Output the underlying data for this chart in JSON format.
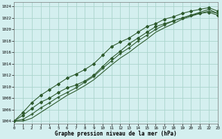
{
  "title": "Graphe pression niveau de la mer (hPa)",
  "background_color": "#d4efef",
  "grid_color": "#aad4cc",
  "line_color": "#2d5a2d",
  "xlim": [
    0,
    23
  ],
  "ylim": [
    1003.5,
    1024.8
  ],
  "xticks": [
    0,
    1,
    2,
    3,
    4,
    5,
    6,
    7,
    8,
    9,
    10,
    11,
    12,
    13,
    14,
    15,
    16,
    17,
    18,
    19,
    20,
    21,
    22,
    23
  ],
  "yticks": [
    1004,
    1006,
    1008,
    1010,
    1012,
    1014,
    1016,
    1018,
    1020,
    1022,
    1024
  ],
  "line_diamond1": [
    1004.0,
    1005.0,
    1006.2,
    1007.3,
    1008.0,
    1009.0,
    1009.8,
    1010.3,
    1011.0,
    1012.0,
    1013.5,
    1015.0,
    1016.2,
    1017.5,
    1018.5,
    1019.5,
    1020.5,
    1021.0,
    1021.5,
    1022.0,
    1022.5,
    1022.8,
    1023.0,
    1022.5
  ],
  "line_diamond2": [
    1004.0,
    1005.5,
    1007.2,
    1008.5,
    1009.5,
    1010.5,
    1011.5,
    1012.2,
    1013.0,
    1014.0,
    1015.5,
    1017.0,
    1017.8,
    1018.5,
    1019.5,
    1020.5,
    1021.0,
    1021.8,
    1022.2,
    1022.8,
    1023.2,
    1023.5,
    1023.8,
    1023.2
  ],
  "line_plus": [
    1004.0,
    1004.3,
    1005.2,
    1006.3,
    1007.2,
    1008.2,
    1009.0,
    1009.8,
    1010.8,
    1011.8,
    1013.2,
    1014.5,
    1015.8,
    1016.8,
    1018.0,
    1019.0,
    1020.0,
    1020.8,
    1021.5,
    1022.0,
    1022.5,
    1023.0,
    1023.5,
    1022.8
  ],
  "line_plain": [
    1004.0,
    1004.0,
    1004.5,
    1005.5,
    1006.5,
    1007.5,
    1008.5,
    1009.3,
    1010.2,
    1011.2,
    1012.5,
    1013.8,
    1015.0,
    1016.0,
    1017.2,
    1018.3,
    1019.5,
    1020.3,
    1021.0,
    1021.8,
    1022.3,
    1022.8,
    1023.2,
    1022.8
  ]
}
